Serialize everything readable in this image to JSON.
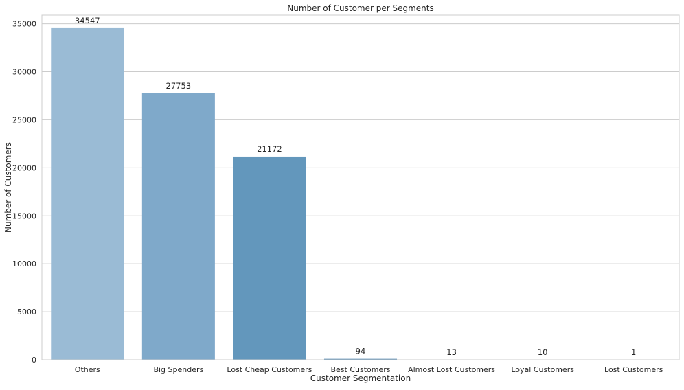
{
  "chart_data": {
    "type": "bar",
    "title": "Number of Customer per Segments",
    "xlabel": "Customer Segmentation",
    "ylabel": "Number of Customers",
    "categories": [
      "Others",
      "Big Spenders",
      "Lost Cheap Customers",
      "Best Customers",
      "Almost Lost Customers",
      "Loyal Customers",
      "Lost Customers"
    ],
    "values": [
      34547,
      27753,
      21172,
      94,
      13,
      10,
      1
    ],
    "data_labels": [
      "34547",
      "27753",
      "21172",
      "94",
      "13",
      "10",
      "1"
    ],
    "ylim": [
      0,
      35900
    ],
    "yticks": [
      0,
      5000,
      10000,
      15000,
      20000,
      25000,
      30000,
      35000
    ],
    "ytick_labels": [
      "0",
      "5000",
      "10000",
      "15000",
      "20000",
      "25000",
      "30000",
      "35000"
    ],
    "grid": "horizontal",
    "colors": [
      "#9ABBD5",
      "#7FA9CA",
      "#6397BC",
      "#4E86AF",
      "#3C74A0",
      "#2F6290",
      "#225380"
    ]
  }
}
